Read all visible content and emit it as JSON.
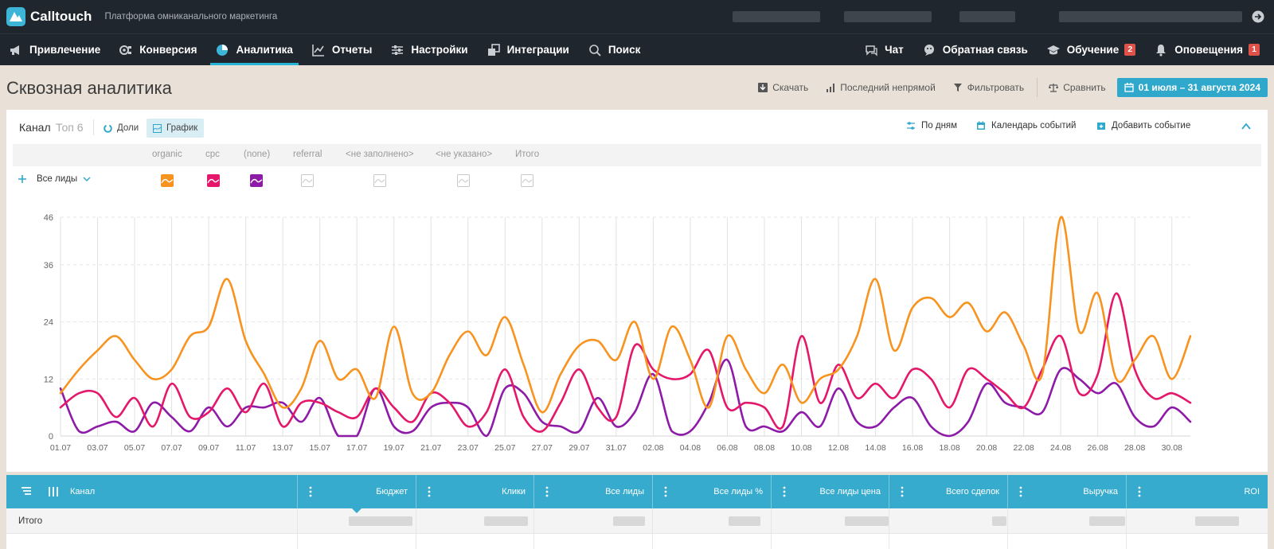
{
  "app": {
    "name": "Calltouch",
    "subtitle": "Платформа омниканального маркетинга"
  },
  "nav": {
    "items": [
      {
        "label": "Привлечение",
        "icon": "megaphone-icon"
      },
      {
        "label": "Конверсия",
        "icon": "conversion-icon"
      },
      {
        "label": "Аналитика",
        "icon": "analytics-icon",
        "active": true
      },
      {
        "label": "Отчеты",
        "icon": "line-chart-icon"
      },
      {
        "label": "Настройки",
        "icon": "sliders-icon"
      },
      {
        "label": "Интеграции",
        "icon": "puzzle-icon"
      },
      {
        "label": "Поиск",
        "icon": "search-icon"
      }
    ],
    "right": [
      {
        "label": "Чат",
        "icon": "chat-icon"
      },
      {
        "label": "Обратная связь",
        "icon": "feedback-icon"
      },
      {
        "label": "Обучение",
        "icon": "graduation-cap-icon",
        "badge": "2"
      },
      {
        "label": "Оповещения",
        "icon": "bell-icon",
        "badge": "1"
      }
    ]
  },
  "page": {
    "title": "Сквозная аналитика",
    "actions": {
      "download": "Скачать",
      "attribution": "Последний непрямой",
      "filter": "Фильтровать",
      "compare": "Сравнить",
      "date_range": "01 июля – 31 августа 2024"
    }
  },
  "panel": {
    "group_label": "Канал",
    "top_label": "Топ 6",
    "mode_shares": "Доли",
    "mode_chart": "График",
    "by_days": "По дням",
    "event_calendar": "Календарь событий",
    "add_event": "Добавить событие",
    "metric_select": "Все лиды"
  },
  "legend": {
    "channels": [
      "organic",
      "cpc",
      "(none)",
      "referral",
      "<не заполнено>",
      "<не указано>",
      "Итого"
    ],
    "active": [
      true,
      true,
      true,
      false,
      false,
      false,
      false
    ]
  },
  "colors": {
    "accent": "#2fa8cc",
    "organic": "#f7931e",
    "cpc": "#e4176a",
    "none": "#8e1aa8",
    "badge": "#e0514a"
  },
  "chart_data": {
    "type": "line",
    "x": [
      "01.07",
      "02.07",
      "03.07",
      "04.07",
      "05.07",
      "06.07",
      "07.07",
      "08.07",
      "09.07",
      "10.07",
      "11.07",
      "12.07",
      "13.07",
      "14.07",
      "15.07",
      "16.07",
      "17.07",
      "18.07",
      "19.07",
      "20.07",
      "21.07",
      "22.07",
      "23.07",
      "24.07",
      "25.07",
      "26.07",
      "27.07",
      "28.07",
      "29.07",
      "30.07",
      "31.07",
      "01.08",
      "02.08",
      "03.08",
      "04.08",
      "05.08",
      "06.08",
      "07.08",
      "08.08",
      "09.08",
      "10.08",
      "11.08",
      "12.08",
      "13.08",
      "14.08",
      "15.08",
      "16.08",
      "17.08",
      "18.08",
      "19.08",
      "20.08",
      "21.08",
      "22.08",
      "23.08",
      "24.08",
      "25.08",
      "26.08",
      "27.08",
      "28.08",
      "29.08",
      "30.08",
      "31.08"
    ],
    "x_tick_labels": [
      "01.07",
      "03.07",
      "05.07",
      "07.07",
      "09.07",
      "11.07",
      "13.07",
      "15.07",
      "17.07",
      "19.07",
      "21.07",
      "23.07",
      "25.07",
      "27.07",
      "29.07",
      "31.07",
      "02.08",
      "04.08",
      "06.08",
      "08.08",
      "10.08",
      "12.08",
      "14.08",
      "16.08",
      "18.08",
      "20.08",
      "22.08",
      "24.08",
      "26.08",
      "28.08",
      "30.08"
    ],
    "yticks": [
      0,
      12,
      24,
      36,
      46
    ],
    "ylim": [
      0,
      46
    ],
    "series": [
      {
        "name": "organic",
        "color": "#f7931e",
        "values": [
          9,
          14,
          18,
          21,
          16,
          12,
          14,
          21,
          23,
          33,
          20,
          13,
          6,
          10,
          20,
          12,
          14,
          8,
          23,
          9,
          9,
          17,
          22,
          17,
          25,
          15,
          5,
          13,
          19,
          20,
          16,
          24,
          12,
          23,
          16,
          6,
          21,
          14,
          9,
          15,
          7,
          12,
          14,
          21,
          33,
          18,
          27,
          29,
          25,
          28,
          22,
          26,
          19,
          13,
          46,
          22,
          30,
          12,
          16,
          21,
          12,
          21
        ]
      },
      {
        "name": "cpc",
        "color": "#e4176a",
        "values": [
          6,
          9,
          9,
          4,
          8,
          2,
          11,
          4,
          5,
          10,
          5,
          11,
          2,
          7,
          7,
          5,
          4,
          10,
          6,
          3,
          9,
          7,
          2,
          5,
          14,
          4,
          1,
          7,
          14,
          6,
          4,
          19,
          14,
          12,
          13,
          18,
          6,
          7,
          6,
          2,
          21,
          7,
          15,
          8,
          11,
          8,
          14,
          12,
          6,
          14,
          12,
          9,
          6,
          14,
          21,
          9,
          13,
          30,
          14,
          8,
          9,
          7
        ]
      },
      {
        "name": "(none)",
        "color": "#8e1aa8",
        "values": [
          10,
          1,
          2,
          3,
          1,
          7,
          4,
          1,
          6,
          2,
          6,
          6,
          7,
          3,
          8,
          0,
          0,
          10,
          2,
          1,
          6,
          7,
          6,
          0,
          10,
          9,
          3,
          2,
          1,
          8,
          2,
          5,
          13,
          1,
          1,
          7,
          16,
          2,
          2,
          1,
          5,
          2,
          10,
          3,
          2,
          6,
          8,
          2,
          0,
          3,
          11,
          7,
          6,
          5,
          14,
          12,
          9,
          11,
          4,
          2,
          6,
          3
        ]
      }
    ]
  },
  "table": {
    "columns": [
      "Канал",
      "Бюджет",
      "Клики",
      "Все лиды",
      "Все лиды %",
      "Все лиды цена",
      "Всего сделок",
      "Выручка",
      "ROI"
    ],
    "total_label": "Итого"
  }
}
